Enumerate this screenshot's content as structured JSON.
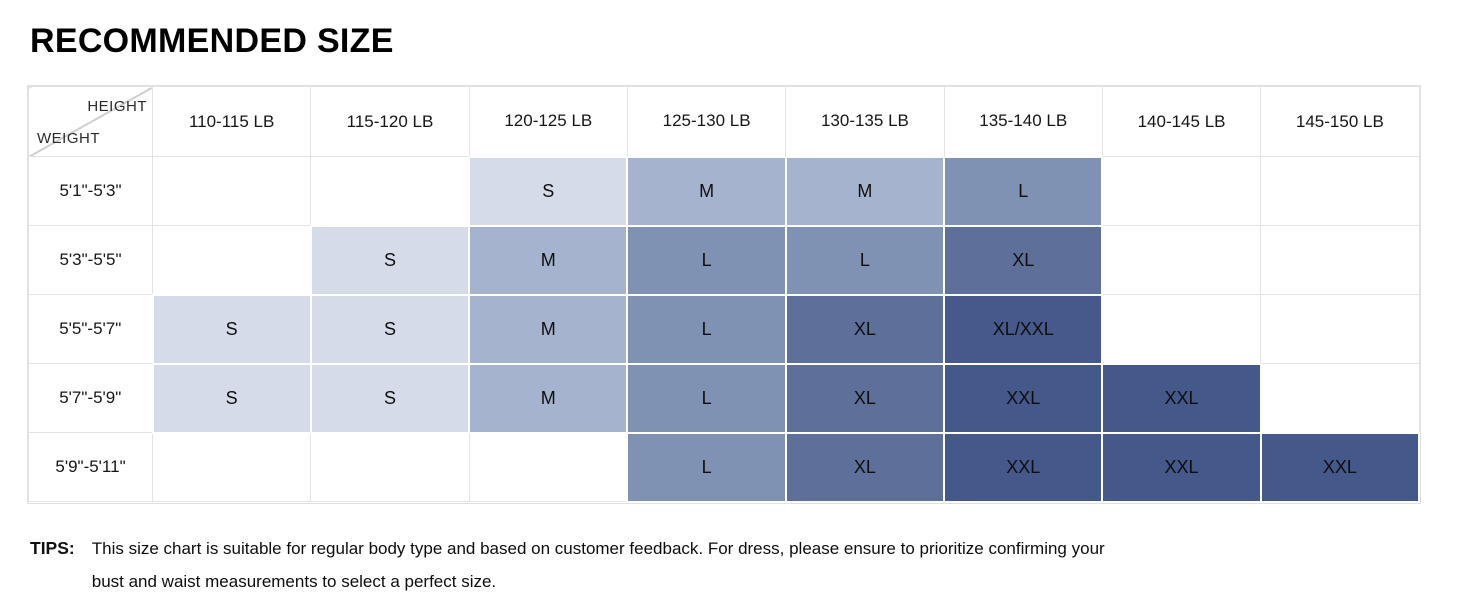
{
  "title": "RECOMMENDED SIZE",
  "chart_data": {
    "type": "table",
    "title": "RECOMMENDED SIZE",
    "corner_top_label": "HEIGHT",
    "corner_bottom_label": "WEIGHT",
    "columns": [
      "110-115 LB",
      "115-120 LB",
      "120-125 LB",
      "125-130 LB",
      "130-135 LB",
      "135-140 LB",
      "140-145 LB",
      "145-150 LB"
    ],
    "rows": [
      {
        "height": "5'1\"-5'3\"",
        "sizes": [
          "",
          "",
          "S",
          "M",
          "M",
          "L",
          "",
          ""
        ]
      },
      {
        "height": "5'3\"-5'5\"",
        "sizes": [
          "",
          "S",
          "M",
          "L",
          "L",
          "XL",
          "",
          ""
        ]
      },
      {
        "height": "5'5\"-5'7\"",
        "sizes": [
          "S",
          "S",
          "M",
          "L",
          "XL",
          "XL/XXL",
          "",
          ""
        ]
      },
      {
        "height": "5'7\"-5'9\"",
        "sizes": [
          "S",
          "S",
          "M",
          "L",
          "XL",
          "XXL",
          "XXL",
          ""
        ]
      },
      {
        "height": "5'9\"-5'11\"",
        "sizes": [
          "",
          "",
          "",
          "L",
          "XL",
          "XXL",
          "XXL",
          "XXL"
        ]
      }
    ],
    "size_colors": {
      "S": "#d5dbe9",
      "M": "#a5b3ce",
      "L": "#8092b4",
      "XL": "#5e7099",
      "XL/XXL": "#46598a",
      "XXL": "#45588a"
    },
    "layout_hints": {
      "grid": true,
      "row_axis": "height ranges",
      "column_axis": "weight ranges (LB)",
      "empty_cells_mean": "no recommendation"
    }
  },
  "tips": {
    "label": "TIPS:",
    "text": "This size chart is suitable for regular body type and based on customer feedback. For dress, please ensure to prioritize confirming your bust and waist measurements to select a perfect size."
  }
}
